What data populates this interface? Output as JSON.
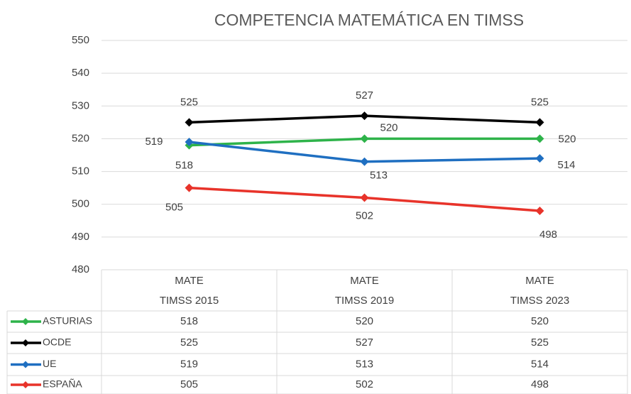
{
  "chart_data": {
    "type": "line",
    "title": "COMPETENCIA MATEMÁTICA EN TIMSS",
    "categories": [
      "MATE\nTIMSS 2015",
      "MATE\nTIMSS 2019",
      "MATE\nTIMSS 2023"
    ],
    "series": [
      {
        "name": "ASTURIAS",
        "color": "#2eb34a",
        "values": [
          518,
          520,
          520
        ]
      },
      {
        "name": "OCDE",
        "color": "#000000",
        "values": [
          525,
          527,
          525
        ]
      },
      {
        "name": "UE",
        "color": "#1f6fc1",
        "values": [
          519,
          513,
          514
        ]
      },
      {
        "name": "ESPAÑA",
        "color": "#e8332a",
        "values": [
          505,
          502,
          498
        ]
      }
    ],
    "ylim": [
      480,
      550
    ],
    "yticks": [
      480,
      490,
      500,
      510,
      520,
      530,
      540,
      550
    ],
    "grid": true,
    "data_table": true
  }
}
